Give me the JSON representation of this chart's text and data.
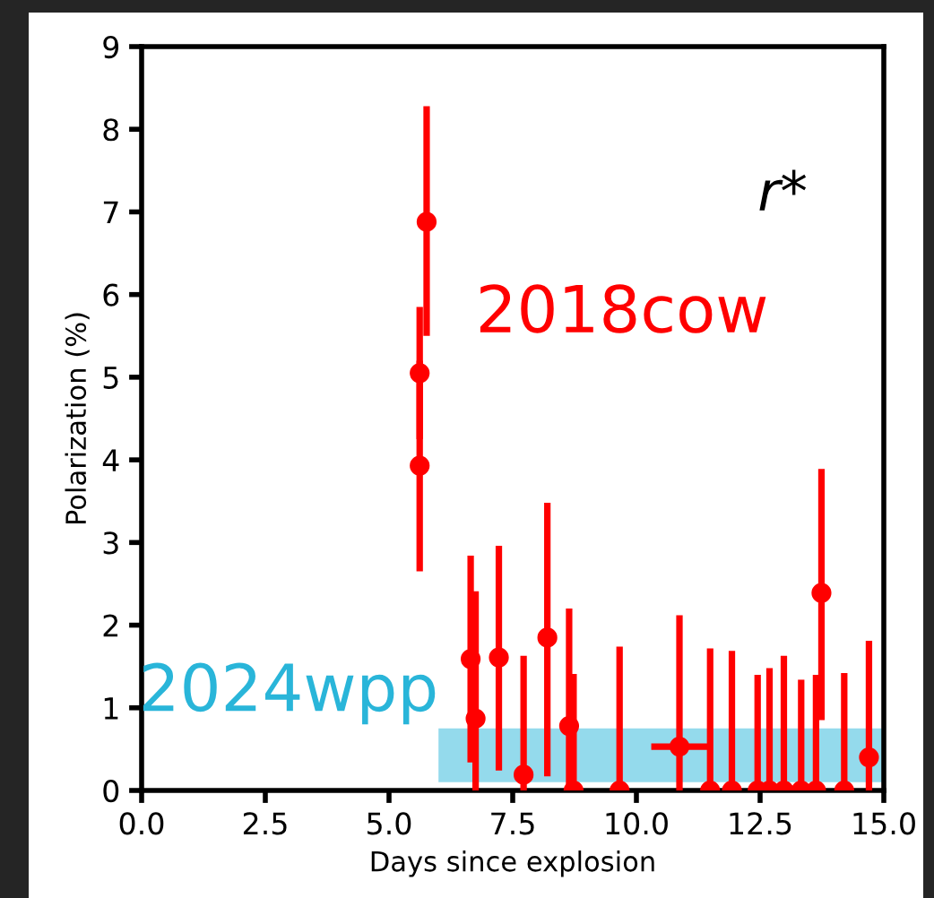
{
  "chart_data": {
    "type": "scatter",
    "xlabel": "Days since explosion",
    "ylabel": "Polarization (%)",
    "xlim": [
      0,
      15
    ],
    "ylim": [
      0,
      9
    ],
    "xticks": [
      {
        "value": 0,
        "label": "0.0"
      },
      {
        "value": 2.5,
        "label": "2.5"
      },
      {
        "value": 5,
        "label": "5.0"
      },
      {
        "value": 7.5,
        "label": "7.5"
      },
      {
        "value": 10,
        "label": "10.0"
      },
      {
        "value": 12.5,
        "label": "12.5"
      },
      {
        "value": 15,
        "label": "15.0"
      }
    ],
    "yticks": [
      0,
      1,
      2,
      3,
      4,
      5,
      6,
      7,
      8,
      9
    ],
    "grid": false,
    "legend": false,
    "annotations": [
      "r*"
    ],
    "series": [
      {
        "name": "2018cow",
        "color": "#ff0000",
        "marker": "circle",
        "x": [
          5.62,
          5.62,
          5.76,
          6.65,
          6.75,
          7.22,
          7.72,
          8.2,
          8.64,
          8.73,
          9.66,
          10.87,
          11.49,
          11.93,
          12.45,
          12.69,
          12.98,
          13.33,
          13.63,
          13.74,
          14.2,
          14.7
        ],
        "values": [
          3.93,
          5.05,
          6.88,
          1.59,
          0.87,
          1.61,
          0.19,
          1.85,
          0.78,
          0,
          0,
          0.53,
          0,
          0,
          0,
          0,
          0,
          0,
          0,
          2.39,
          0,
          0.4
        ],
        "errors": [
          [
            2.65,
            5.2
          ],
          [
            4.25,
            5.85
          ],
          [
            5.5,
            8.28
          ],
          [
            0.34,
            2.84
          ],
          [
            0,
            2.41
          ],
          [
            0.24,
            2.96
          ],
          [
            0,
            1.63
          ],
          [
            0.17,
            3.48
          ],
          [
            0,
            2.2
          ],
          [
            0,
            1.41
          ],
          [
            0,
            1.74
          ],
          [
            0,
            2.12
          ],
          [
            0,
            1.72
          ],
          [
            0,
            1.69
          ],
          [
            0,
            1.4
          ],
          [
            0,
            1.48
          ],
          [
            0,
            1.63
          ],
          [
            0,
            1.34
          ],
          [
            0,
            1.4
          ],
          [
            0.85,
            3.89
          ],
          [
            0,
            1.42
          ],
          [
            0,
            1.81
          ]
        ],
        "xerrors": [
          null,
          null,
          null,
          null,
          null,
          null,
          null,
          null,
          null,
          null,
          null,
          [
            10.3,
            11.45
          ],
          null,
          null,
          null,
          null,
          null,
          null,
          null,
          null,
          null,
          null
        ]
      },
      {
        "name": "2024wpp",
        "type": "area",
        "color": "#29b5d9",
        "x": [
          6.0,
          15.0
        ],
        "values": [
          null,
          null
        ],
        "lower": [
          0.1,
          0.1
        ],
        "upper": [
          0.75,
          0.75
        ]
      }
    ]
  }
}
